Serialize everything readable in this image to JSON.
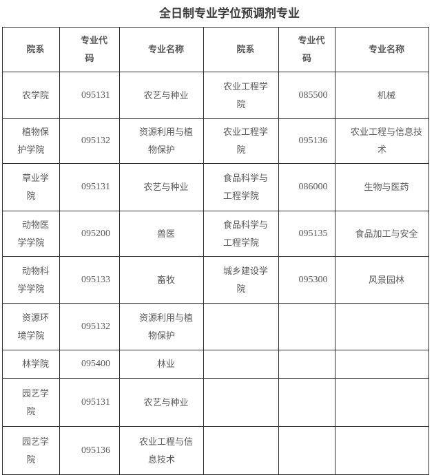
{
  "title": "全日制专业学位预调剂专业",
  "table": {
    "headers": [
      "院系",
      "专业代\n码",
      "专业名称",
      "院系",
      "专业代\n码",
      "专业名称"
    ],
    "rows": [
      [
        "农学院",
        "095131",
        "农艺与种业",
        "农业工程学\n院",
        "085500",
        "机械"
      ],
      [
        "植物保\n护学院",
        "095132",
        "资源利用与植\n物保护",
        "农业工程学\n院",
        "095136",
        "农业工程与信息技\n术"
      ],
      [
        "草业学\n院",
        "095131",
        "农艺与种业",
        "食品科学与\n工程学院",
        "086000",
        "生物与医药"
      ],
      [
        "动物医\n学学院",
        "095200",
        "兽医",
        "食品科学与\n工程学院",
        "095135",
        "食品加工与安全"
      ],
      [
        "动物科\n学学院",
        "095133",
        "畜牧",
        "城乡建设学\n院",
        "095300",
        "风景园林"
      ],
      [
        "资源环\n境学院",
        "095132",
        "资源利用与植\n物保护",
        "",
        "",
        ""
      ],
      [
        "林学院",
        "095400",
        "林业",
        "",
        "",
        ""
      ],
      [
        "园艺学\n院",
        "095131",
        "农艺与种业",
        "",
        "",
        ""
      ],
      [
        "园艺学\n院",
        "095136",
        "农业工程与信\n息技术",
        "",
        "",
        ""
      ]
    ]
  },
  "colors": {
    "background": "#ffffff",
    "border": "#2e2e2e",
    "text": "#5a5a5a",
    "header_text": "#555555",
    "title": "#3c3c3c"
  }
}
